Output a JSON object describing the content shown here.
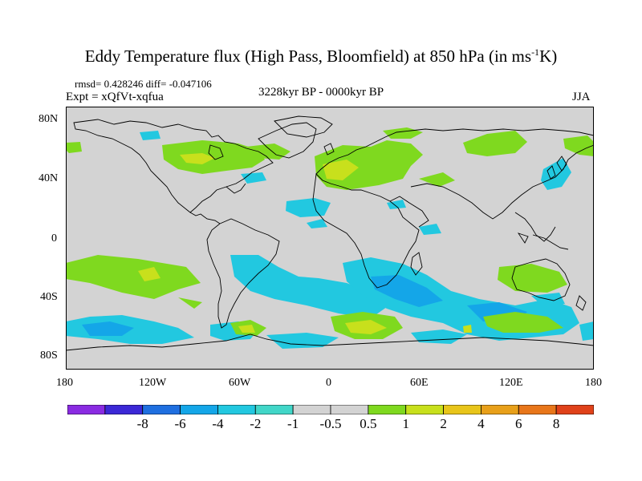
{
  "title": {
    "main": "Eddy Temperature flux (High Pass, Bloomfield) at 850 hPa (in ms",
    "sup": "-1",
    "end": "K)"
  },
  "stats": "rmsd= 0.428246 diff= -0.047106",
  "experiment": "Expt = xQfVt-xqfua",
  "period": "3228kyr BP - 0000kyr BP",
  "season": "JJA",
  "y_ticks": [
    "80N",
    "40N",
    "0",
    "40S",
    "80S"
  ],
  "x_ticks": [
    "180",
    "120W",
    "60W",
    "0",
    "60E",
    "120E",
    "180"
  ],
  "colorbar": {
    "colors": [
      "#8a2be2",
      "#3b28d6",
      "#1f6fe0",
      "#14a6e8",
      "#22c8e0",
      "#41d6c8",
      "#d3d3d3",
      "#d3d3d3",
      "#7fd91f",
      "#c8e01c",
      "#e8c51a",
      "#e8a01a",
      "#e8761a",
      "#e0421a"
    ],
    "labels": [
      "-8",
      "-6",
      "-4",
      "-2",
      "-1",
      "-0.5",
      "0.5",
      "1",
      "2",
      "4",
      "6",
      "8"
    ]
  },
  "legend_colors": {
    "ocean_land_bg": "#d3d3d3",
    "cyan": "#22c8e0",
    "light_blue": "#14a6e8",
    "green": "#7fd91f",
    "yellow_green": "#c8e01c"
  }
}
